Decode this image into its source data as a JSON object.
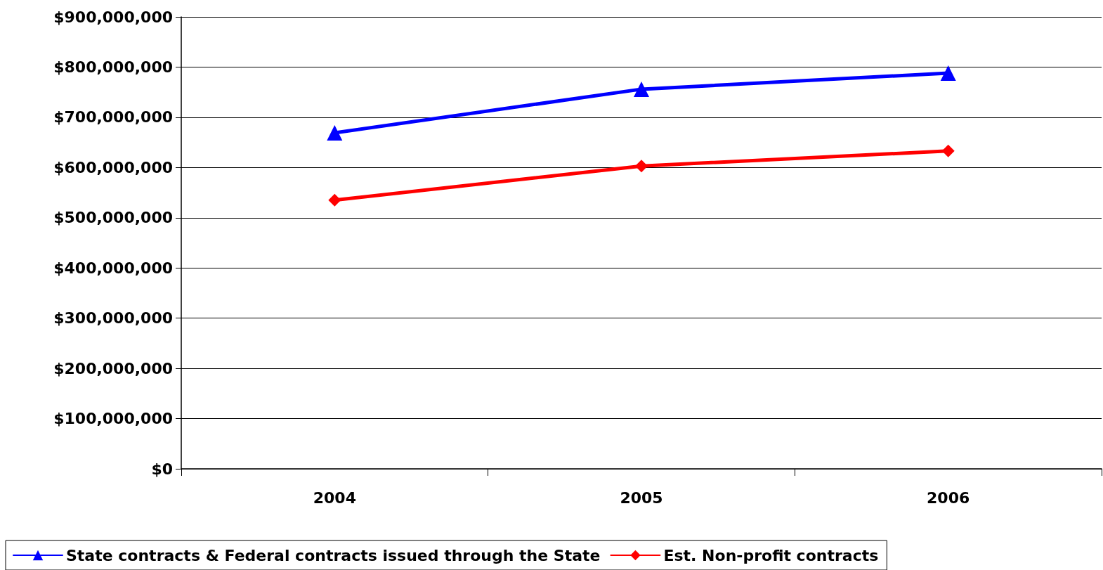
{
  "chart_data": {
    "type": "line",
    "categories": [
      "2004",
      "2005",
      "2006"
    ],
    "series": [
      {
        "name": "State contracts & Federal contracts issued through the State",
        "color": "#0000ff",
        "marker": "triangle",
        "values": [
          669000000,
          756000000,
          788000000
        ]
      },
      {
        "name": "Est. Non-profit contracts",
        "color": "#ff0000",
        "marker": "diamond",
        "values": [
          535000000,
          603000000,
          633000000
        ]
      }
    ],
    "ylim": [
      0,
      900000000
    ],
    "yticks": [
      {
        "value": 0,
        "label": "$0"
      },
      {
        "value": 100000000,
        "label": "$100,000,000"
      },
      {
        "value": 200000000,
        "label": "$200,000,000"
      },
      {
        "value": 300000000,
        "label": "$300,000,000"
      },
      {
        "value": 400000000,
        "label": "$400,000,000"
      },
      {
        "value": 500000000,
        "label": "$500,000,000"
      },
      {
        "value": 600000000,
        "label": "$600,000,000"
      },
      {
        "value": 700000000,
        "label": "$700,000,000"
      },
      {
        "value": 800000000,
        "label": "$800,000,000"
      },
      {
        "value": 900000000,
        "label": "$900,000,000"
      }
    ],
    "grid": "y",
    "legend": "bottom",
    "line_style": "solid"
  }
}
